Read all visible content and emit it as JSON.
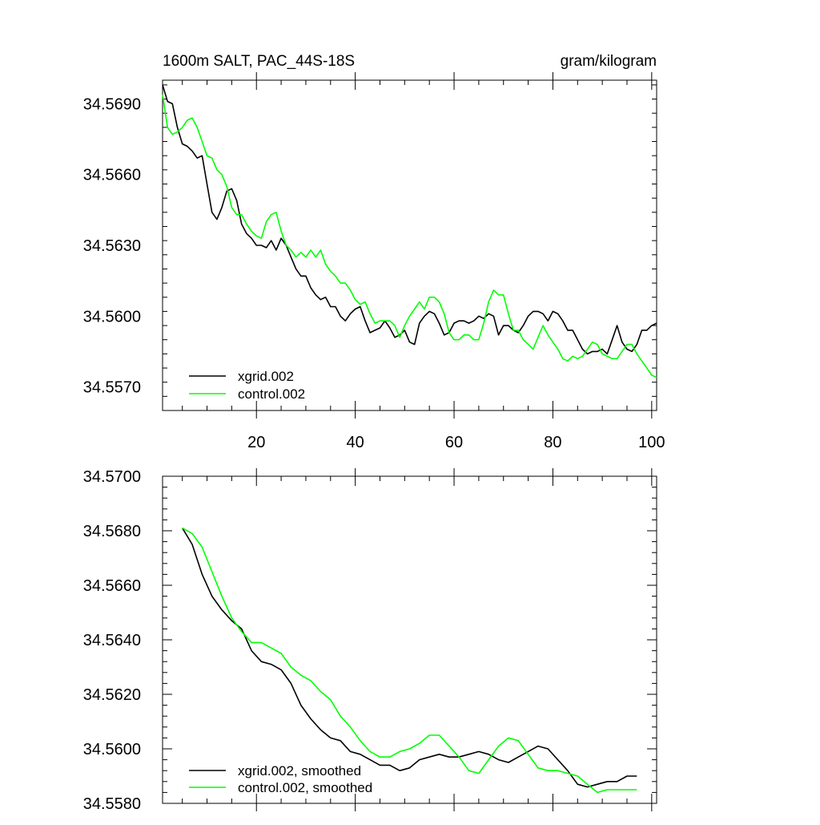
{
  "chart_data": [
    {
      "type": "line",
      "title": "1600m SALT, PAC_44S-18S",
      "units": "gram/kilogram",
      "xlim": [
        1,
        101
      ],
      "ylim": [
        34.556,
        34.57
      ],
      "xticks": [
        20,
        40,
        60,
        80,
        100
      ],
      "yticks": [
        34.569,
        34.566,
        34.563,
        34.56,
        34.557
      ],
      "ytick_labels": [
        "34.5690",
        "34.5660",
        "34.5630",
        "34.5600",
        "34.5570"
      ],
      "legend_position": "bottom-left",
      "series": [
        {
          "name": "xgrid.002",
          "color": "#000000",
          "x": [
            1,
            2,
            3,
            4,
            5,
            6,
            7,
            8,
            9,
            10,
            11,
            12,
            13,
            14,
            15,
            16,
            17,
            18,
            19,
            20,
            21,
            22,
            23,
            24,
            25,
            26,
            27,
            28,
            29,
            30,
            31,
            32,
            33,
            34,
            35,
            36,
            37,
            38,
            39,
            40,
            41,
            42,
            43,
            44,
            45,
            46,
            47,
            48,
            49,
            50,
            51,
            52,
            53,
            54,
            55,
            56,
            57,
            58,
            59,
            60,
            61,
            62,
            63,
            64,
            65,
            66,
            67,
            68,
            69,
            70,
            71,
            72,
            73,
            74,
            75,
            76,
            77,
            78,
            79,
            80,
            81,
            82,
            83,
            84,
            85,
            86,
            87,
            88,
            89,
            90,
            91,
            92,
            93,
            94,
            95,
            96,
            97,
            98,
            99,
            100,
            101
          ],
          "values": [
            34.5698,
            34.5691,
            34.569,
            34.568,
            34.5673,
            34.5672,
            34.567,
            34.5667,
            34.5668,
            34.5656,
            34.5644,
            34.5641,
            34.5646,
            34.5653,
            34.5654,
            34.5649,
            34.5639,
            34.5635,
            34.5633,
            34.563,
            34.563,
            34.5629,
            34.5632,
            34.5628,
            34.5633,
            34.563,
            34.5625,
            34.562,
            34.5617,
            34.5617,
            34.5612,
            34.5609,
            34.5607,
            34.5608,
            34.5604,
            34.5604,
            34.56,
            34.5598,
            34.5601,
            34.5603,
            34.5604,
            34.5598,
            34.5593,
            34.5594,
            34.5595,
            34.5598,
            34.5595,
            34.5591,
            34.5592,
            34.5594,
            34.5589,
            34.5588,
            34.5597,
            34.56,
            34.5602,
            34.5601,
            34.5597,
            34.5592,
            34.5593,
            34.5597,
            34.5598,
            34.5598,
            34.5597,
            34.5598,
            34.56,
            34.5599,
            34.5601,
            34.56,
            34.5592,
            34.5596,
            34.5596,
            34.5594,
            34.5593,
            34.5596,
            34.56,
            34.5602,
            34.5602,
            34.5601,
            34.5598,
            34.5602,
            34.5601,
            34.5598,
            34.5594,
            34.5594,
            34.559,
            34.5586,
            34.5584,
            34.5585,
            34.5585,
            34.5586,
            34.5584,
            34.559,
            34.5596,
            34.5589,
            34.5586,
            34.5585,
            34.5588,
            34.5594,
            34.5594,
            34.5596,
            34.5597
          ]
        },
        {
          "name": "control.002",
          "color": "#00ff00",
          "x": [
            1,
            2,
            3,
            4,
            5,
            6,
            7,
            8,
            9,
            10,
            11,
            12,
            13,
            14,
            15,
            16,
            17,
            18,
            19,
            20,
            21,
            22,
            23,
            24,
            25,
            26,
            27,
            28,
            29,
            30,
            31,
            32,
            33,
            34,
            35,
            36,
            37,
            38,
            39,
            40,
            41,
            42,
            43,
            44,
            45,
            46,
            47,
            48,
            49,
            50,
            51,
            52,
            53,
            54,
            55,
            56,
            57,
            58,
            59,
            60,
            61,
            62,
            63,
            64,
            65,
            66,
            67,
            68,
            69,
            70,
            71,
            72,
            73,
            74,
            75,
            76,
            77,
            78,
            79,
            80,
            81,
            82,
            83,
            84,
            85,
            86,
            87,
            88,
            89,
            90,
            91,
            92,
            93,
            94,
            95,
            96,
            97,
            98,
            99,
            100,
            101
          ],
          "values": [
            34.5694,
            34.568,
            34.5677,
            34.5678,
            34.568,
            34.5683,
            34.5684,
            34.568,
            34.5674,
            34.5668,
            34.5667,
            34.5662,
            34.566,
            34.5655,
            34.5646,
            34.5643,
            34.5643,
            34.5639,
            34.5636,
            34.5634,
            34.5633,
            34.564,
            34.5643,
            34.5644,
            34.5636,
            34.563,
            34.5628,
            34.5625,
            34.5627,
            34.5625,
            34.5628,
            34.5625,
            34.5628,
            34.5622,
            34.5619,
            34.5617,
            34.5614,
            34.5614,
            34.5611,
            34.5607,
            34.5605,
            34.5606,
            34.5601,
            34.5597,
            34.5598,
            34.5598,
            34.5598,
            34.5596,
            34.5591,
            34.5596,
            34.56,
            34.5603,
            34.5606,
            34.5603,
            34.5608,
            34.5608,
            34.5606,
            34.5601,
            34.5593,
            34.559,
            34.559,
            34.5592,
            34.5592,
            34.559,
            34.559,
            34.5597,
            34.5606,
            34.5611,
            34.5609,
            34.5609,
            34.5601,
            34.5594,
            34.5594,
            34.559,
            34.5588,
            34.5586,
            34.5591,
            34.5596,
            34.5592,
            34.5589,
            34.5586,
            34.5582,
            34.5581,
            34.5583,
            34.5582,
            34.5583,
            34.5586,
            34.5589,
            34.5588,
            34.5584,
            34.5583,
            34.5582,
            34.5582,
            34.5585,
            34.5588,
            34.5588,
            34.5584,
            34.5581,
            34.5578,
            34.5575,
            34.5574
          ]
        }
      ]
    },
    {
      "type": "line",
      "title": "",
      "xlim": [
        1,
        101
      ],
      "ylim": [
        34.558,
        34.57
      ],
      "xticks": [
        20,
        40,
        60,
        80,
        100
      ],
      "yticks": [
        34.57,
        34.568,
        34.566,
        34.564,
        34.562,
        34.56,
        34.558
      ],
      "ytick_labels": [
        "34.5700",
        "34.5680",
        "34.5660",
        "34.5640",
        "34.5620",
        "34.5600",
        "34.5580"
      ],
      "legend_position": "bottom-left",
      "series": [
        {
          "name": "xgrid.002, smoothed",
          "color": "#000000",
          "x": [
            5,
            7,
            9,
            11,
            13,
            15,
            17,
            19,
            21,
            23,
            25,
            27,
            29,
            31,
            33,
            35,
            37,
            39,
            41,
            43,
            45,
            47,
            49,
            51,
            53,
            55,
            57,
            59,
            61,
            63,
            65,
            67,
            69,
            71,
            73,
            75,
            77,
            79,
            81,
            83,
            85,
            87,
            89,
            91,
            93,
            95,
            97
          ],
          "values": [
            34.5681,
            34.5675,
            34.5664,
            34.5656,
            34.5651,
            34.5647,
            34.5644,
            34.5636,
            34.5632,
            34.5631,
            34.5629,
            34.5624,
            34.5616,
            34.5611,
            34.5607,
            34.5604,
            34.5603,
            34.5599,
            34.5598,
            34.5596,
            34.5594,
            34.5594,
            34.5592,
            34.5593,
            34.5596,
            34.5597,
            34.5598,
            34.5597,
            34.5597,
            34.5598,
            34.5599,
            34.5598,
            34.5596,
            34.5595,
            34.5597,
            34.5599,
            34.5601,
            34.56,
            34.5596,
            34.5592,
            34.5587,
            34.5586,
            34.5587,
            34.5588,
            34.5588,
            34.559,
            34.559
          ]
        },
        {
          "name": "control.002, smoothed",
          "color": "#00ff00",
          "x": [
            5,
            7,
            9,
            11,
            13,
            15,
            17,
            19,
            21,
            23,
            25,
            27,
            29,
            31,
            33,
            35,
            37,
            39,
            41,
            43,
            45,
            47,
            49,
            51,
            53,
            55,
            57,
            59,
            61,
            63,
            65,
            67,
            69,
            71,
            73,
            75,
            77,
            79,
            81,
            83,
            85,
            87,
            89,
            91,
            93,
            95,
            97
          ],
          "values": [
            34.5681,
            34.5679,
            34.5674,
            34.5665,
            34.5656,
            34.5648,
            34.5643,
            34.5639,
            34.5639,
            34.5637,
            34.5635,
            34.563,
            34.5627,
            34.5625,
            34.5621,
            34.5618,
            34.5612,
            34.5608,
            34.5603,
            34.5599,
            34.5597,
            34.5597,
            34.5599,
            34.56,
            34.5602,
            34.5605,
            34.5605,
            34.5601,
            34.5597,
            34.5592,
            34.5591,
            34.5596,
            34.5601,
            34.5604,
            34.5603,
            34.5598,
            34.5593,
            34.5592,
            34.5592,
            34.5591,
            34.559,
            34.5587,
            34.5584,
            34.5585,
            34.5585,
            34.5585,
            34.5585
          ]
        }
      ]
    }
  ]
}
